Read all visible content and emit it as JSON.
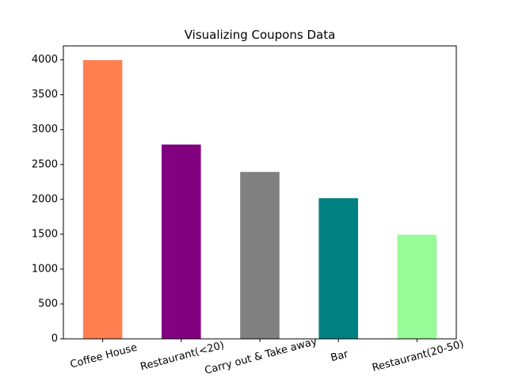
{
  "chart_data": {
    "type": "bar",
    "title": "Visualizing Coupons Data",
    "xlabel": "",
    "ylabel": "",
    "categories": [
      "Coffee House",
      "Restaurant(<20)",
      "Carry out & Take away",
      "Bar",
      "Restaurant(20-50)"
    ],
    "values": [
      3996,
      2786,
      2393,
      2017,
      1492
    ],
    "colors": [
      "#ff7f50",
      "#800080",
      "#808080",
      "#008080",
      "#98fb98"
    ],
    "ylim": [
      0,
      4200
    ],
    "yticks": [
      0,
      500,
      1000,
      1500,
      2000,
      2500,
      3000,
      3500,
      4000
    ],
    "grid": false,
    "legend": "none"
  }
}
